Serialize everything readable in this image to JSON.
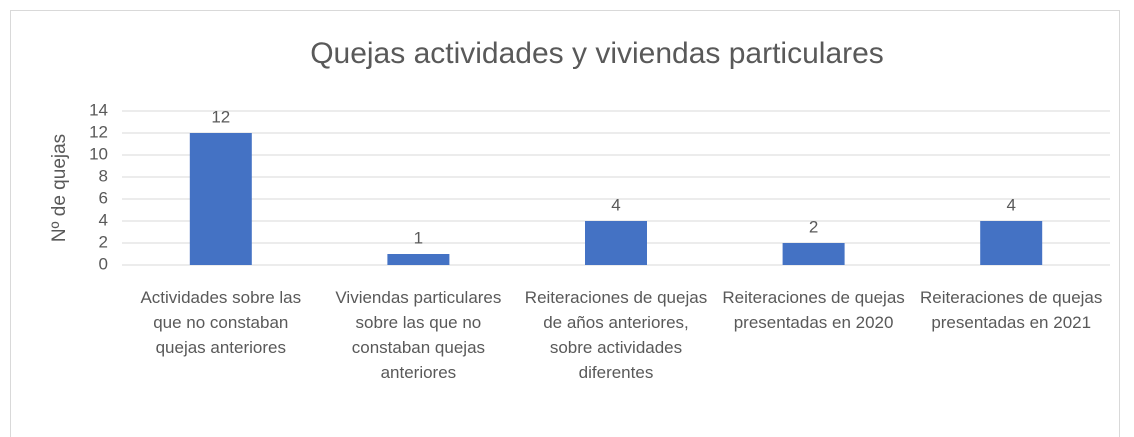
{
  "chart_data": {
    "type": "bar",
    "title": "Quejas actividades y viviendas particulares",
    "y_label": "Nº de quejas",
    "categories": [
      "Actividades sobre las que no constaban quejas anteriores",
      "Viviendas particulares sobre las que no constaban quejas anteriores",
      "Reiteraciones de quejas de años anteriores, sobre actividades diferentes",
      "Reiteraciones de quejas presentadas en 2020",
      "Reiteraciones de quejas presentadas en 2021"
    ],
    "values": [
      12,
      1,
      4,
      2,
      4
    ],
    "color": "#4472c4",
    "ylim": [
      0,
      14
    ],
    "yticks": [
      0,
      2,
      4,
      6,
      8,
      10,
      12,
      14
    ],
    "grid": true
  }
}
